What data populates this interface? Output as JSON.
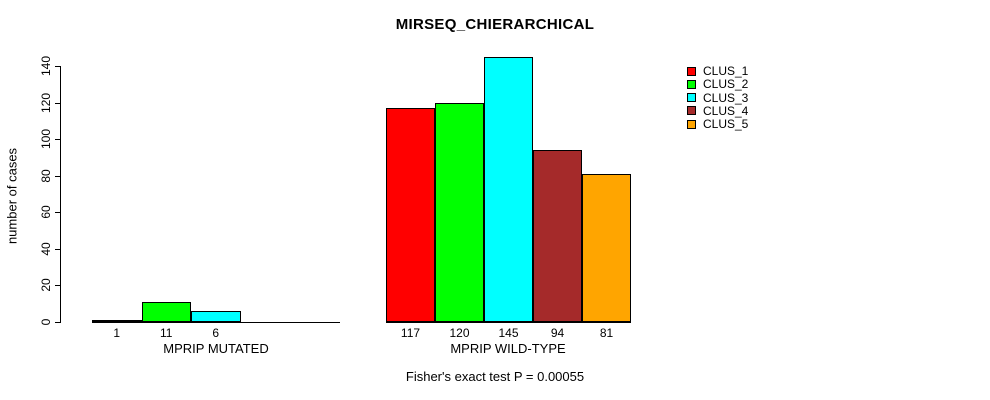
{
  "title": "MIRSEQ_CHIERARCHICAL",
  "annotation": "Fisher's exact test P = 0.00055",
  "chart_data": {
    "type": "bar",
    "title": "MIRSEQ_CHIERARCHICAL",
    "xlabel": "",
    "ylabel": "number of cases",
    "ylim": [
      0,
      145
    ],
    "yticks": [
      0,
      20,
      40,
      60,
      80,
      100,
      120,
      140
    ],
    "grid": false,
    "legend_position": "top-right",
    "annotation": "Fisher's exact test P = 0.00055",
    "bar_colors": [
      "#ff0000",
      "#00ff00",
      "#00ffff",
      "#a52a2a",
      "#ffa500"
    ],
    "groups": [
      {
        "label": "MPRIP MUTATED",
        "categories": [
          "CLUS_1",
          "CLUS_2",
          "CLUS_3"
        ],
        "values": [
          1,
          11,
          6
        ],
        "bar_labels": [
          "1",
          "11",
          "6"
        ]
      },
      {
        "label": "MPRIP WILD-TYPE",
        "categories": [
          "CLUS_1",
          "CLUS_2",
          "CLUS_3",
          "CLUS_4",
          "CLUS_5"
        ],
        "values": [
          117,
          120,
          145,
          94,
          81
        ],
        "bar_labels": [
          "117",
          "120",
          "145",
          "94",
          "81"
        ]
      }
    ],
    "legend": [
      {
        "label": "CLUS_1",
        "color": "#ff0000"
      },
      {
        "label": "CLUS_2",
        "color": "#00ff00"
      },
      {
        "label": "CLUS_3",
        "color": "#00ffff"
      },
      {
        "label": "CLUS_4",
        "color": "#a52a2a"
      },
      {
        "label": "CLUS_5",
        "color": "#ffa500"
      }
    ],
    "axis_color": "#000000",
    "background_color": "#ffffff"
  }
}
